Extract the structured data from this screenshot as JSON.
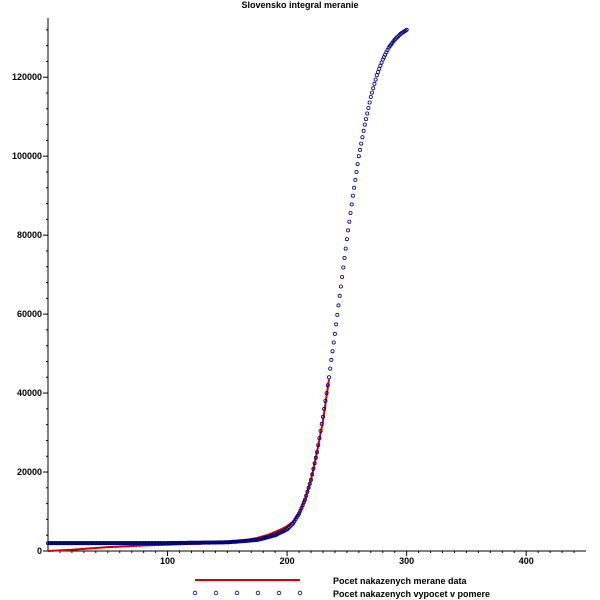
{
  "chart_data": {
    "type": "line",
    "title": "Slovensko integral meranie",
    "xlabel": "",
    "ylabel": "",
    "xlim": [
      0,
      450
    ],
    "ylim": [
      0,
      135000
    ],
    "x_ticks": [
      100,
      200,
      300,
      400
    ],
    "y_ticks": [
      0,
      20000,
      40000,
      60000,
      80000,
      100000,
      120000
    ],
    "x_tick_labels": [
      "100",
      "200",
      "300",
      "400"
    ],
    "y_tick_labels": [
      "0",
      "20000",
      "40000",
      "60000",
      "80000",
      "100000",
      "120000"
    ],
    "grid": false,
    "legend_position": "bottom-center",
    "series": [
      {
        "name": "Pocet nakazenych merane data",
        "style": "line",
        "color": "#cc0000",
        "x": [
          0,
          20,
          50,
          80,
          110,
          140,
          160,
          175,
          185,
          195,
          200,
          205,
          210,
          215,
          220,
          225,
          230,
          235
        ],
        "y": [
          0,
          300,
          1000,
          1400,
          1700,
          2000,
          2500,
          3300,
          4200,
          5500,
          6300,
          7500,
          9500,
          13000,
          18000,
          25000,
          33000,
          43500
        ]
      },
      {
        "name": "Pocet nakazenych vypocet v pomere",
        "style": "markers",
        "color": "#000080",
        "x": [
          0,
          50,
          100,
          150,
          175,
          190,
          200,
          205,
          210,
          215,
          220,
          225,
          230,
          235,
          240,
          245,
          250,
          255,
          260,
          265,
          270,
          275,
          280,
          285,
          290,
          295,
          300
        ],
        "y": [
          2000,
          2000,
          2000,
          2200,
          2800,
          4000,
          5500,
          7000,
          9500,
          13000,
          18000,
          25000,
          34000,
          44000,
          55000,
          67000,
          79000,
          90000,
          100000,
          108000,
          115000,
          120500,
          124500,
          127500,
          129500,
          131000,
          132000
        ]
      }
    ]
  }
}
